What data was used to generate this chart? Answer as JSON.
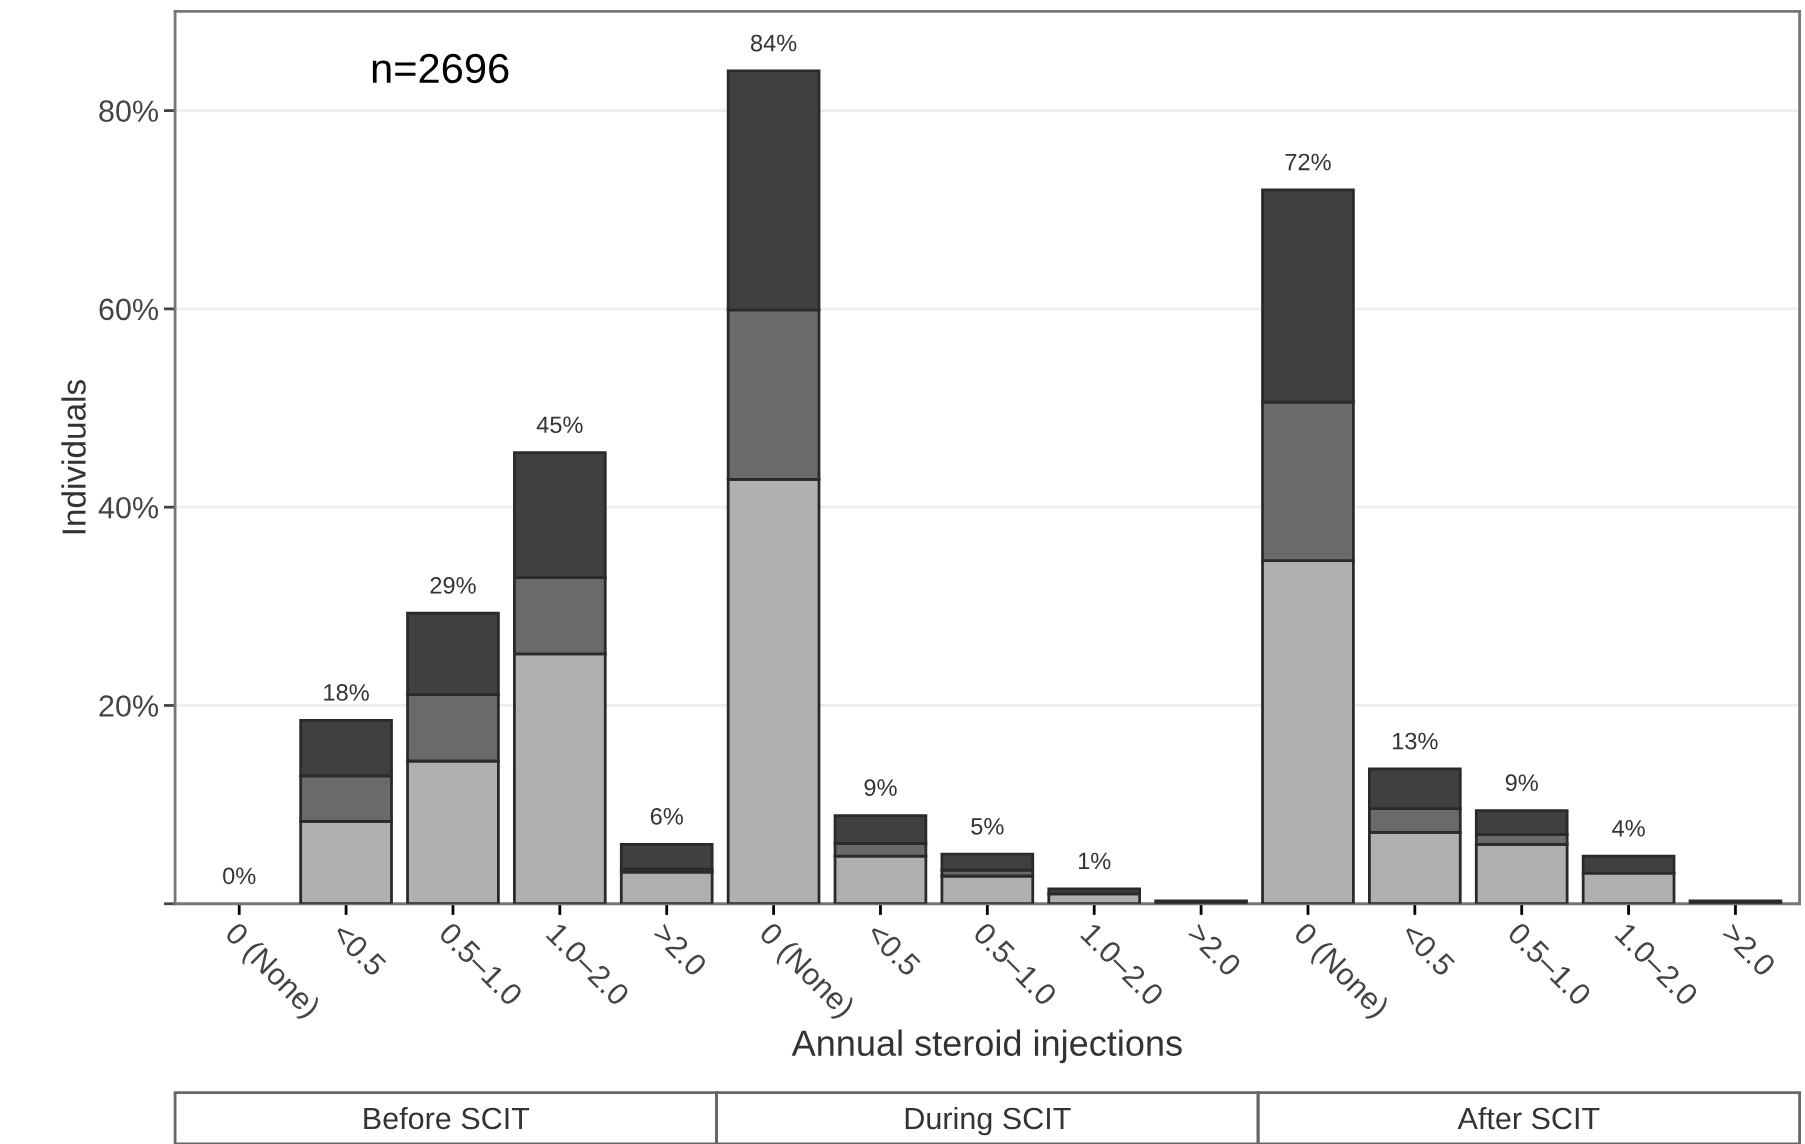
{
  "chart_data": {
    "type": "bar",
    "stacked": true,
    "categories": [
      "0 (None)",
      "<0.5",
      "0.5–1.0",
      "1.0–2.0",
      ">2.0",
      "0 (None)",
      "<0.5",
      "0.5–1.0",
      "1.0–2.0",
      ">2.0",
      "0 (None)",
      "<0.5",
      "0.5–1.0",
      "1.0–2.0",
      ">2.0"
    ],
    "series": [
      {
        "color": "#b0b0b0",
        "values": [
          0,
          8.3,
          14.4,
          25.2,
          3.2,
          42.8,
          4.8,
          2.8,
          1.0,
          null,
          34.6,
          7.2,
          6.0,
          3.1,
          null
        ]
      },
      {
        "color": "#6a6a6a",
        "values": [
          0,
          4.6,
          6.7,
          7.7,
          0.3,
          17.1,
          1.3,
          0.6,
          null,
          null,
          16.0,
          2.4,
          1.0,
          null,
          null
        ]
      },
      {
        "color": "#404040",
        "values": [
          0,
          5.6,
          8.2,
          12.6,
          2.5,
          24.1,
          2.8,
          1.6,
          0.5,
          0.3,
          21.4,
          4.0,
          2.4,
          1.7,
          0.3
        ]
      }
    ],
    "value_labels": [
      "0%",
      "18%",
      "29%",
      "45%",
      "6%",
      "84%",
      "9%",
      "5%",
      "1%",
      null,
      "72%",
      "13%",
      "9%",
      "4%",
      null
    ],
    "ylim": [
      0,
      90
    ],
    "yticks": [
      {
        "value": 0,
        "label": null
      },
      {
        "value": 20,
        "label": "20%"
      },
      {
        "value": 40,
        "label": "40%"
      },
      {
        "value": 60,
        "label": "60%"
      },
      {
        "value": 80,
        "label": "80%"
      }
    ],
    "xlabel": "Annual steroid injections",
    "ylabel": "Individuals",
    "grid": "y",
    "annotations": [
      "n=2696",
      "Before SCIT",
      "During SCIT",
      "After SCIT"
    ]
  }
}
